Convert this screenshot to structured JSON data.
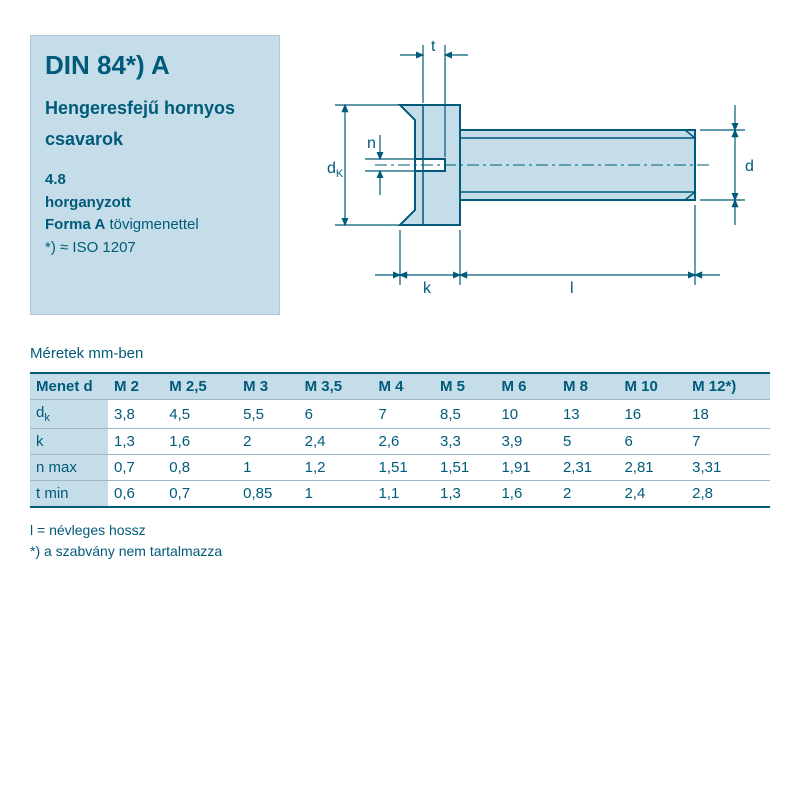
{
  "info": {
    "din": "DIN 84*) A",
    "desc1": "Hengeresfejű hornyos",
    "desc2": "csavarok",
    "spec1": "4.8",
    "spec2": "horganyzott",
    "spec3a": "Forma A",
    "spec3b": " tövigmenettel",
    "spec4": "*) ≈ ISO 1207"
  },
  "diagram": {
    "stroke": "#005a7a",
    "fill": "#c5dde8",
    "labels": {
      "t": "t",
      "n": "n",
      "dk": "d",
      "dksub": "K",
      "k": "k",
      "l": "l",
      "d": "d"
    }
  },
  "table": {
    "title": "Méretek mm-ben",
    "headers": [
      "Menet d",
      "M 2",
      "M 2,5",
      "M 3",
      "M 3,5",
      "M 4",
      "M 5",
      "M 6",
      "M 8",
      "M 10",
      "M 12*)"
    ],
    "rows": [
      {
        "label": "d",
        "sub": "k",
        "cells": [
          "3,8",
          "4,5",
          "5,5",
          "6",
          "7",
          "8,5",
          "10",
          "13",
          "16",
          "18"
        ]
      },
      {
        "label": "k",
        "sub": "",
        "cells": [
          "1,3",
          "1,6",
          "2",
          "2,4",
          "2,6",
          "3,3",
          "3,9",
          "5",
          "6",
          "7"
        ]
      },
      {
        "label": "n max",
        "sub": "",
        "cells": [
          "0,7",
          "0,8",
          "1",
          "1,2",
          "1,51",
          "1,51",
          "1,91",
          "2,31",
          "2,81",
          "3,31"
        ]
      },
      {
        "label": "t min",
        "sub": "",
        "cells": [
          "0,6",
          "0,7",
          "0,85",
          "1",
          "1,1",
          "1,3",
          "1,6",
          "2",
          "2,4",
          "2,8"
        ]
      }
    ]
  },
  "footnotes": {
    "f1": "l = névleges hossz",
    "f2": "*) a szabvány nem tartalmazza"
  }
}
